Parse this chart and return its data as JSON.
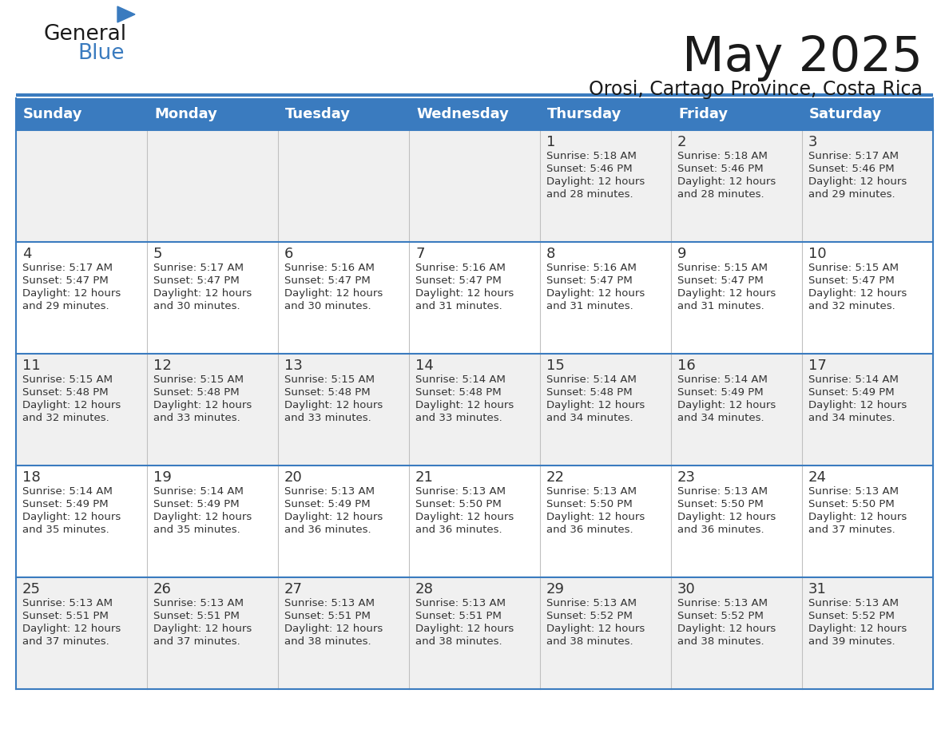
{
  "title": "May 2025",
  "subtitle": "Orosi, Cartago Province, Costa Rica",
  "header_bg": "#3a7bbf",
  "header_text": "#ffffff",
  "row_bg_even": "#f0f0f0",
  "row_bg_odd": "#ffffff",
  "border_color": "#3a7bbf",
  "day_names": [
    "Sunday",
    "Monday",
    "Tuesday",
    "Wednesday",
    "Thursday",
    "Friday",
    "Saturday"
  ],
  "title_color": "#1a1a1a",
  "subtitle_color": "#1a1a1a",
  "cell_text_color": "#333333",
  "day_num_color": "#333333",
  "logo_general_color": "#1a1a1a",
  "logo_blue_color": "#3a7bbf",
  "logo_triangle_color": "#3a7bbf",
  "calendar": [
    [
      null,
      null,
      null,
      null,
      {
        "day": 1,
        "sunrise": "5:18 AM",
        "sunset": "5:46 PM",
        "daylight_hours": 12,
        "daylight_minutes": 28
      },
      {
        "day": 2,
        "sunrise": "5:18 AM",
        "sunset": "5:46 PM",
        "daylight_hours": 12,
        "daylight_minutes": 28
      },
      {
        "day": 3,
        "sunrise": "5:17 AM",
        "sunset": "5:46 PM",
        "daylight_hours": 12,
        "daylight_minutes": 29
      }
    ],
    [
      {
        "day": 4,
        "sunrise": "5:17 AM",
        "sunset": "5:47 PM",
        "daylight_hours": 12,
        "daylight_minutes": 29
      },
      {
        "day": 5,
        "sunrise": "5:17 AM",
        "sunset": "5:47 PM",
        "daylight_hours": 12,
        "daylight_minutes": 30
      },
      {
        "day": 6,
        "sunrise": "5:16 AM",
        "sunset": "5:47 PM",
        "daylight_hours": 12,
        "daylight_minutes": 30
      },
      {
        "day": 7,
        "sunrise": "5:16 AM",
        "sunset": "5:47 PM",
        "daylight_hours": 12,
        "daylight_minutes": 31
      },
      {
        "day": 8,
        "sunrise": "5:16 AM",
        "sunset": "5:47 PM",
        "daylight_hours": 12,
        "daylight_minutes": 31
      },
      {
        "day": 9,
        "sunrise": "5:15 AM",
        "sunset": "5:47 PM",
        "daylight_hours": 12,
        "daylight_minutes": 31
      },
      {
        "day": 10,
        "sunrise": "5:15 AM",
        "sunset": "5:47 PM",
        "daylight_hours": 12,
        "daylight_minutes": 32
      }
    ],
    [
      {
        "day": 11,
        "sunrise": "5:15 AM",
        "sunset": "5:48 PM",
        "daylight_hours": 12,
        "daylight_minutes": 32
      },
      {
        "day": 12,
        "sunrise": "5:15 AM",
        "sunset": "5:48 PM",
        "daylight_hours": 12,
        "daylight_minutes": 33
      },
      {
        "day": 13,
        "sunrise": "5:15 AM",
        "sunset": "5:48 PM",
        "daylight_hours": 12,
        "daylight_minutes": 33
      },
      {
        "day": 14,
        "sunrise": "5:14 AM",
        "sunset": "5:48 PM",
        "daylight_hours": 12,
        "daylight_minutes": 33
      },
      {
        "day": 15,
        "sunrise": "5:14 AM",
        "sunset": "5:48 PM",
        "daylight_hours": 12,
        "daylight_minutes": 34
      },
      {
        "day": 16,
        "sunrise": "5:14 AM",
        "sunset": "5:49 PM",
        "daylight_hours": 12,
        "daylight_minutes": 34
      },
      {
        "day": 17,
        "sunrise": "5:14 AM",
        "sunset": "5:49 PM",
        "daylight_hours": 12,
        "daylight_minutes": 34
      }
    ],
    [
      {
        "day": 18,
        "sunrise": "5:14 AM",
        "sunset": "5:49 PM",
        "daylight_hours": 12,
        "daylight_minutes": 35
      },
      {
        "day": 19,
        "sunrise": "5:14 AM",
        "sunset": "5:49 PM",
        "daylight_hours": 12,
        "daylight_minutes": 35
      },
      {
        "day": 20,
        "sunrise": "5:13 AM",
        "sunset": "5:49 PM",
        "daylight_hours": 12,
        "daylight_minutes": 36
      },
      {
        "day": 21,
        "sunrise": "5:13 AM",
        "sunset": "5:50 PM",
        "daylight_hours": 12,
        "daylight_minutes": 36
      },
      {
        "day": 22,
        "sunrise": "5:13 AM",
        "sunset": "5:50 PM",
        "daylight_hours": 12,
        "daylight_minutes": 36
      },
      {
        "day": 23,
        "sunrise": "5:13 AM",
        "sunset": "5:50 PM",
        "daylight_hours": 12,
        "daylight_minutes": 36
      },
      {
        "day": 24,
        "sunrise": "5:13 AM",
        "sunset": "5:50 PM",
        "daylight_hours": 12,
        "daylight_minutes": 37
      }
    ],
    [
      {
        "day": 25,
        "sunrise": "5:13 AM",
        "sunset": "5:51 PM",
        "daylight_hours": 12,
        "daylight_minutes": 37
      },
      {
        "day": 26,
        "sunrise": "5:13 AM",
        "sunset": "5:51 PM",
        "daylight_hours": 12,
        "daylight_minutes": 37
      },
      {
        "day": 27,
        "sunrise": "5:13 AM",
        "sunset": "5:51 PM",
        "daylight_hours": 12,
        "daylight_minutes": 38
      },
      {
        "day": 28,
        "sunrise": "5:13 AM",
        "sunset": "5:51 PM",
        "daylight_hours": 12,
        "daylight_minutes": 38
      },
      {
        "day": 29,
        "sunrise": "5:13 AM",
        "sunset": "5:52 PM",
        "daylight_hours": 12,
        "daylight_minutes": 38
      },
      {
        "day": 30,
        "sunrise": "5:13 AM",
        "sunset": "5:52 PM",
        "daylight_hours": 12,
        "daylight_minutes": 38
      },
      {
        "day": 31,
        "sunrise": "5:13 AM",
        "sunset": "5:52 PM",
        "daylight_hours": 12,
        "daylight_minutes": 39
      }
    ]
  ]
}
